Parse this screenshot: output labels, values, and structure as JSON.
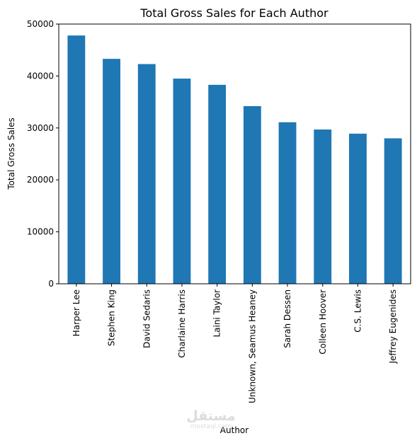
{
  "watermark": {
    "main": "مستقل",
    "sub": "mostaql.com"
  },
  "chart_data": {
    "type": "bar",
    "title": "Total Gross Sales for Each Author",
    "xlabel": "Author",
    "ylabel": "Total Gross Sales",
    "categories": [
      "Harper Lee",
      "Stephen King",
      "David Sedaris",
      "Charlaine Harris",
      "Laini Taylor",
      "Unknown, Seamus Heaney",
      "Sarah Dessen",
      "Colleen Hoover",
      "C.S. Lewis",
      "Jeffrey Eugenides"
    ],
    "values": [
      47800,
      43300,
      42300,
      39500,
      38300,
      34200,
      31100,
      29700,
      28900,
      28000
    ],
    "yticks": [
      0,
      10000,
      20000,
      30000,
      40000,
      50000
    ],
    "ylim": [
      0,
      50000
    ],
    "grid": false,
    "legend": "none",
    "bar_color": "#1f77b4"
  }
}
